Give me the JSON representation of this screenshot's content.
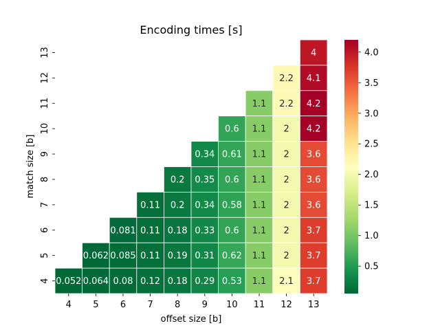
{
  "chart_data": {
    "type": "heatmap",
    "title": "Encoding times [s]",
    "xlabel": "offset size [b]",
    "ylabel": "match size [b]",
    "x": [
      4,
      5,
      6,
      7,
      8,
      9,
      10,
      11,
      12,
      13
    ],
    "y": [
      13,
      12,
      11,
      10,
      9,
      8,
      7,
      6,
      5,
      4
    ],
    "cells": [
      [
        null,
        null,
        null,
        null,
        null,
        null,
        null,
        null,
        null,
        4.0
      ],
      [
        null,
        null,
        null,
        null,
        null,
        null,
        null,
        null,
        2.2,
        4.1
      ],
      [
        null,
        null,
        null,
        null,
        null,
        null,
        null,
        1.1,
        2.2,
        4.2
      ],
      [
        null,
        null,
        null,
        null,
        null,
        null,
        0.6,
        1.1,
        2.0,
        4.2
      ],
      [
        null,
        null,
        null,
        null,
        null,
        0.34,
        0.61,
        1.1,
        2.0,
        3.6
      ],
      [
        null,
        null,
        null,
        null,
        0.2,
        0.35,
        0.6,
        1.1,
        2.0,
        3.6
      ],
      [
        null,
        null,
        null,
        0.11,
        0.2,
        0.34,
        0.58,
        1.1,
        2.0,
        3.6
      ],
      [
        null,
        null,
        0.081,
        0.11,
        0.18,
        0.33,
        0.6,
        1.1,
        2.0,
        3.7
      ],
      [
        null,
        0.062,
        0.085,
        0.11,
        0.19,
        0.31,
        0.62,
        1.1,
        2.0,
        3.7
      ],
      [
        0.052,
        0.064,
        0.08,
        0.12,
        0.18,
        0.29,
        0.53,
        1.1,
        2.1,
        3.7
      ]
    ],
    "labels": [
      [
        "",
        "",
        "",
        "",
        "",
        "",
        "",
        "",
        "",
        "4"
      ],
      [
        "",
        "",
        "",
        "",
        "",
        "",
        "",
        "",
        "2.2",
        "4.1"
      ],
      [
        "",
        "",
        "",
        "",
        "",
        "",
        "",
        "1.1",
        "2.2",
        "4.2"
      ],
      [
        "",
        "",
        "",
        "",
        "",
        "",
        "0.6",
        "1.1",
        "2",
        "4.2"
      ],
      [
        "",
        "",
        "",
        "",
        "",
        "0.34",
        "0.61",
        "1.1",
        "2",
        "3.6"
      ],
      [
        "",
        "",
        "",
        "",
        "0.2",
        "0.35",
        "0.6",
        "1.1",
        "2",
        "3.6"
      ],
      [
        "",
        "",
        "",
        "0.11",
        "0.2",
        "0.34",
        "0.58",
        "1.1",
        "2",
        "3.6"
      ],
      [
        "",
        "",
        "0.081",
        "0.11",
        "0.18",
        "0.33",
        "0.6",
        "1.1",
        "2",
        "3.7"
      ],
      [
        "",
        "0.062",
        "0.085",
        "0.11",
        "0.19",
        "0.31",
        "0.62",
        "1.1",
        "2",
        "3.7"
      ],
      [
        "0.052",
        "0.064",
        "0.08",
        "0.12",
        "0.18",
        "0.29",
        "0.53",
        "1.1",
        "2.1",
        "3.7"
      ]
    ],
    "colormap": "RdYlGn_r",
    "vmin": 0.052,
    "vmax": 4.2,
    "colorbar_ticks": [
      0.5,
      1.0,
      1.5,
      2.0,
      2.5,
      3.0,
      3.5,
      4.0
    ],
    "colorbar_tick_labels": [
      "0.5",
      "1.0",
      "1.5",
      "2.0",
      "2.5",
      "3.0",
      "3.5",
      "4.0"
    ],
    "grid": false,
    "cell_separator_color": "#ffffff"
  }
}
